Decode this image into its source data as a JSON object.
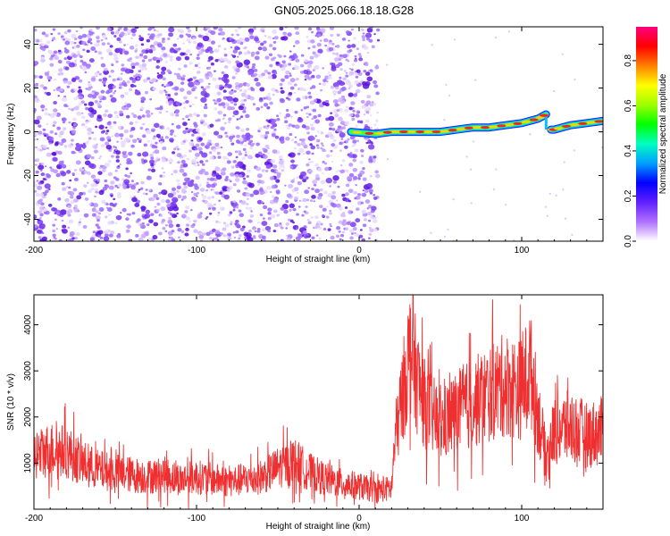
{
  "title": "GN05.2025.066.18.18.G28",
  "chart_data": [
    {
      "type": "heatmap",
      "xlabel": "Height of straight line (km)",
      "ylabel": "Frequency (Hz)",
      "xlim": [
        -200,
        150
      ],
      "ylim": [
        -50,
        48
      ],
      "xticks": [
        -200,
        -100,
        0,
        100
      ],
      "yticks": [
        -40,
        -20,
        0,
        20,
        40
      ],
      "colorbar": {
        "label": "Normalized spectral amplitude",
        "range": [
          0,
          0.95
        ],
        "ticks": [
          0.0,
          0.2,
          0.4,
          0.6,
          0.8
        ],
        "colors": [
          "#ffffff",
          "#b070ff",
          "#6020ff",
          "#0000ff",
          "#00a0ff",
          "#00ffc0",
          "#00ff00",
          "#a0ff00",
          "#ffff00",
          "#ff8000",
          "#ff0000",
          "#ff0080"
        ]
      },
      "noise_region_x": [
        -200,
        12
      ],
      "signal_track": {
        "x": [
          -5,
          10,
          20,
          30,
          40,
          50,
          60,
          70,
          80,
          90,
          100,
          110,
          115,
          118,
          120,
          130,
          140,
          150
        ],
        "y": [
          0,
          -1,
          0,
          0,
          0,
          0,
          1,
          2,
          2,
          3,
          4,
          6,
          8,
          1,
          1,
          3,
          4,
          5
        ]
      }
    },
    {
      "type": "line",
      "xlabel": "Height of straight line (km)",
      "ylabel": "SNR (10 * v/v)",
      "xlim": [
        -200,
        150
      ],
      "ylim": [
        0,
        4650
      ],
      "xticks": [
        -200,
        -100,
        0,
        100
      ],
      "yticks": [
        1000,
        2000,
        3000,
        4000
      ],
      "color": "#f03030",
      "x": [
        -200,
        -190,
        -180,
        -170,
        -160,
        -150,
        -140,
        -130,
        -120,
        -110,
        -100,
        -90,
        -80,
        -70,
        -60,
        -50,
        -40,
        -30,
        -20,
        -10,
        0,
        10,
        20,
        22,
        25,
        30,
        32,
        35,
        40,
        50,
        60,
        70,
        80,
        90,
        100,
        105,
        110,
        115,
        120,
        130,
        140,
        150
      ],
      "y": [
        1150,
        1300,
        1250,
        1000,
        850,
        800,
        750,
        700,
        750,
        650,
        700,
        650,
        600,
        650,
        700,
        900,
        1050,
        800,
        650,
        550,
        500,
        400,
        450,
        1500,
        2100,
        3200,
        3500,
        2900,
        2300,
        1800,
        2100,
        2300,
        2500,
        2700,
        2600,
        3100,
        2100,
        1100,
        1700,
        1800,
        1600,
        1700
      ]
    }
  ]
}
